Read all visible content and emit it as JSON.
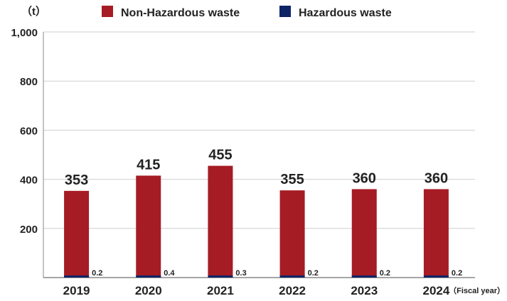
{
  "chart_data": {
    "type": "bar",
    "stacked": true,
    "unit_label": "（t）",
    "xlabel": "（Fiscal year）",
    "categories": [
      "2019",
      "2020",
      "2021",
      "2022",
      "2023",
      "2024"
    ],
    "series": [
      {
        "name": "Non-Hazardous waste",
        "color": "#a61c24",
        "values": [
          353,
          415,
          455,
          355,
          360,
          360
        ]
      },
      {
        "name": "Hazardous waste",
        "color": "#0f2466",
        "values": [
          0.2,
          0.4,
          0.3,
          0.2,
          0.2,
          0.2
        ]
      }
    ],
    "ylim": [
      0,
      1000
    ],
    "yticks": [
      200,
      400,
      600,
      800,
      1000
    ],
    "ytick_labels": [
      "200",
      "400",
      "600",
      "800",
      "1,000"
    ],
    "grid": true,
    "legend": "top"
  }
}
